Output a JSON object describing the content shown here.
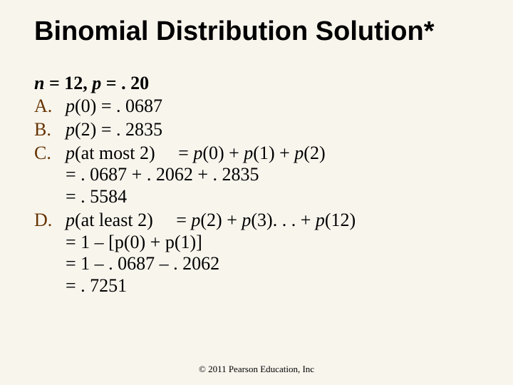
{
  "colors": {
    "background": "#f8f5ed",
    "text": "#000000",
    "item_label": "#663300"
  },
  "typography": {
    "title_family": "Arial",
    "title_size_pt": 38,
    "title_weight": "bold",
    "body_family": "Times New Roman",
    "body_size_pt": 26,
    "footer_size_pt": 13
  },
  "title": "Binomial Distribution Solution*",
  "params": {
    "n_var": "n",
    "n_eq": " = 12, ",
    "p_var": "p",
    "p_eq": " = . 20"
  },
  "items": {
    "a_label": "A.",
    "a_p": "p",
    "a_rest": "(0) = . 0687",
    "b_label": "B.",
    "b_p": "p",
    "b_rest": "(2) = . 2835",
    "c_label": "C.",
    "c_p1": "p",
    "c_mid1": "(at most 2)  = ",
    "c_p2": "p",
    "c_mid2": "(0) + ",
    "c_p3": "p",
    "c_mid3": "(1) + ",
    "c_p4": "p",
    "c_end": "(2)",
    "c_line2": "= . 0687 + . 2062 + . 2835",
    "c_line3": "= . 5584",
    "d_label": "D.",
    "d_p1": "p",
    "d_mid1": "(at least 2)  = ",
    "d_p2": "p",
    "d_mid2": "(2) + ",
    "d_p3": "p",
    "d_mid3": "(3). . . + ",
    "d_p4": "p",
    "d_end": "(12)",
    "d_line2a": "= 1 –  [",
    "d_p5": "p",
    "d_line2b": "(0) + ",
    "d_p6": "p",
    "d_line2c": "(1)]",
    "d_line3": "= 1 – . 0687 – . 2062",
    "d_line4": "= . 7251"
  },
  "footer": "© 2011 Pearson Education, Inc"
}
